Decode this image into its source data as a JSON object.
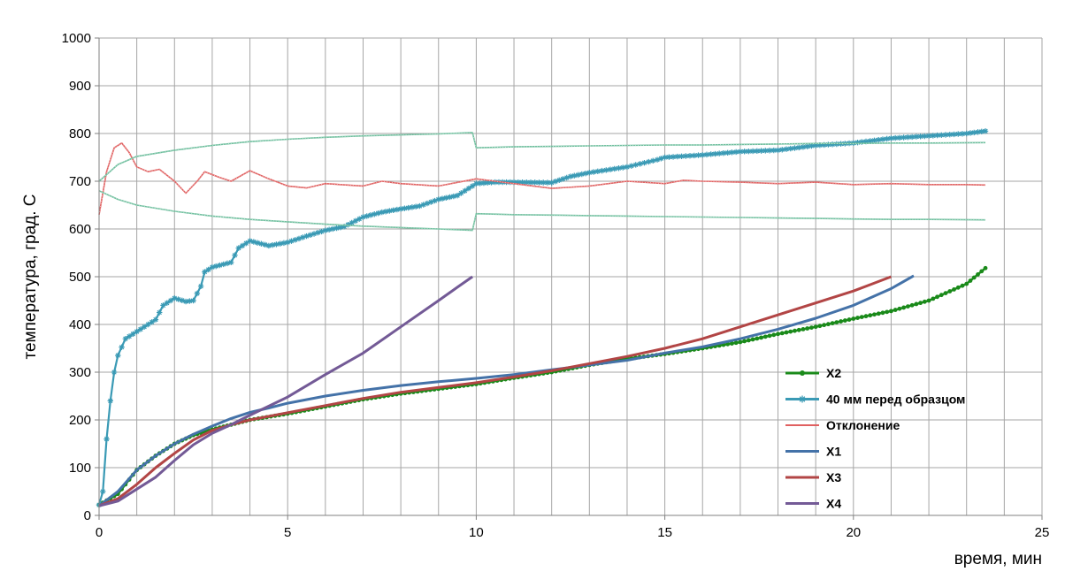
{
  "chart_data": {
    "type": "line",
    "title": "",
    "xlabel": "время, мин",
    "ylabel": "температура, град. С",
    "xlim": [
      0,
      25
    ],
    "ylim": [
      0,
      1000
    ],
    "xticks": [
      0,
      5,
      10,
      15,
      20,
      25
    ],
    "yticks": [
      0,
      100,
      200,
      300,
      400,
      500,
      600,
      700,
      800,
      900,
      1000
    ],
    "x_minor_step": 1,
    "y_major_step": 100,
    "grid": true,
    "legend_position": "bottom-right",
    "series": [
      {
        "name": "X2",
        "color": "#1a8a1a",
        "marker": "dot",
        "points": [
          [
            0,
            22
          ],
          [
            0.5,
            45
          ],
          [
            1,
            95
          ],
          [
            1.5,
            125
          ],
          [
            2,
            150
          ],
          [
            2.5,
            168
          ],
          [
            3,
            180
          ],
          [
            3.5,
            190
          ],
          [
            4,
            200
          ],
          [
            5,
            213
          ],
          [
            6,
            228
          ],
          [
            7,
            243
          ],
          [
            8,
            255
          ],
          [
            9,
            265
          ],
          [
            10,
            275
          ],
          [
            11,
            288
          ],
          [
            12,
            300
          ],
          [
            13,
            315
          ],
          [
            14,
            328
          ],
          [
            15,
            338
          ],
          [
            16,
            350
          ],
          [
            17,
            363
          ],
          [
            18,
            380
          ],
          [
            19,
            395
          ],
          [
            20,
            412
          ],
          [
            21,
            428
          ],
          [
            22,
            450
          ],
          [
            23,
            485
          ],
          [
            23.5,
            518
          ]
        ]
      },
      {
        "name": "40 мм перед образцом",
        "color": "#3a9ab5",
        "marker": "star",
        "points": [
          [
            0,
            22
          ],
          [
            0.1,
            50
          ],
          [
            0.2,
            160
          ],
          [
            0.3,
            240
          ],
          [
            0.4,
            300
          ],
          [
            0.5,
            335
          ],
          [
            0.7,
            370
          ],
          [
            1,
            385
          ],
          [
            1.2,
            395
          ],
          [
            1.5,
            410
          ],
          [
            1.7,
            440
          ],
          [
            2,
            455
          ],
          [
            2.3,
            448
          ],
          [
            2.5,
            450
          ],
          [
            2.7,
            480
          ],
          [
            2.8,
            510
          ],
          [
            3,
            520
          ],
          [
            3.5,
            530
          ],
          [
            3.7,
            560
          ],
          [
            4,
            575
          ],
          [
            4.5,
            565
          ],
          [
            5,
            572
          ],
          [
            5.5,
            585
          ],
          [
            6,
            597
          ],
          [
            6.5,
            605
          ],
          [
            7,
            625
          ],
          [
            7.5,
            635
          ],
          [
            8,
            642
          ],
          [
            8.5,
            648
          ],
          [
            9,
            662
          ],
          [
            9.5,
            670
          ],
          [
            10,
            695
          ],
          [
            10.5,
            698
          ],
          [
            11,
            698
          ],
          [
            12,
            697
          ],
          [
            12.5,
            710
          ],
          [
            13,
            718
          ],
          [
            14,
            730
          ],
          [
            14.8,
            745
          ],
          [
            15,
            750
          ],
          [
            16,
            755
          ],
          [
            17,
            762
          ],
          [
            18,
            765
          ],
          [
            19,
            775
          ],
          [
            20,
            780
          ],
          [
            21,
            790
          ],
          [
            22,
            795
          ],
          [
            23,
            800
          ],
          [
            23.5,
            805
          ]
        ]
      },
      {
        "name": "Отклонение",
        "color": "#e06060",
        "marker": "thin",
        "points": [
          [
            0,
            630
          ],
          [
            0.2,
            720
          ],
          [
            0.4,
            770
          ],
          [
            0.6,
            780
          ],
          [
            0.8,
            760
          ],
          [
            1,
            730
          ],
          [
            1.3,
            720
          ],
          [
            1.6,
            725
          ],
          [
            2,
            700
          ],
          [
            2.3,
            675
          ],
          [
            2.6,
            700
          ],
          [
            2.8,
            720
          ],
          [
            3.2,
            708
          ],
          [
            3.5,
            700
          ],
          [
            4,
            722
          ],
          [
            4.5,
            705
          ],
          [
            5,
            690
          ],
          [
            5.5,
            686
          ],
          [
            6,
            695
          ],
          [
            7,
            690
          ],
          [
            7.5,
            700
          ],
          [
            8,
            695
          ],
          [
            9,
            690
          ],
          [
            10,
            705
          ],
          [
            10.5,
            700
          ],
          [
            11,
            695
          ],
          [
            12,
            685
          ],
          [
            13,
            690
          ],
          [
            14,
            700
          ],
          [
            15,
            695
          ],
          [
            15.5,
            702
          ],
          [
            16,
            700
          ],
          [
            17,
            698
          ],
          [
            18,
            695
          ],
          [
            19,
            698
          ],
          [
            20,
            693
          ],
          [
            21,
            695
          ],
          [
            22,
            693
          ],
          [
            23,
            693
          ],
          [
            23.5,
            692
          ]
        ]
      },
      {
        "name": "",
        "color": "#6fbf9e",
        "marker": "thin",
        "points": [
          [
            0,
            700
          ],
          [
            0.5,
            735
          ],
          [
            1,
            752
          ],
          [
            2,
            765
          ],
          [
            3,
            775
          ],
          [
            4,
            783
          ],
          [
            5,
            788
          ],
          [
            6,
            792
          ],
          [
            7,
            795
          ],
          [
            8,
            797
          ],
          [
            9,
            799
          ],
          [
            9.9,
            802
          ],
          [
            10,
            770
          ],
          [
            11,
            772
          ],
          [
            12,
            773
          ],
          [
            13,
            774
          ],
          [
            14,
            775
          ],
          [
            15,
            776
          ],
          [
            16,
            776
          ],
          [
            17,
            777
          ],
          [
            18,
            778
          ],
          [
            19,
            779
          ],
          [
            20,
            779
          ],
          [
            21,
            780
          ],
          [
            22,
            780
          ],
          [
            23.5,
            781
          ]
        ]
      },
      {
        "name": "",
        "color": "#6fbf9e",
        "marker": "thin",
        "points": [
          [
            0,
            680
          ],
          [
            0.5,
            662
          ],
          [
            1,
            650
          ],
          [
            2,
            637
          ],
          [
            3,
            627
          ],
          [
            4,
            620
          ],
          [
            5,
            615
          ],
          [
            6,
            610
          ],
          [
            7,
            606
          ],
          [
            8,
            603
          ],
          [
            9,
            600
          ],
          [
            9.9,
            597
          ],
          [
            10,
            632
          ],
          [
            11,
            630
          ],
          [
            12,
            629
          ],
          [
            13,
            628
          ],
          [
            14,
            627
          ],
          [
            15,
            626
          ],
          [
            16,
            625
          ],
          [
            17,
            624
          ],
          [
            18,
            623
          ],
          [
            19,
            622
          ],
          [
            20,
            621
          ],
          [
            21,
            620
          ],
          [
            22,
            620
          ],
          [
            23.5,
            619
          ]
        ]
      },
      {
        "name": "X1",
        "color": "#4472a8",
        "marker": "none",
        "points": [
          [
            0,
            20
          ],
          [
            0.5,
            50
          ],
          [
            1,
            95
          ],
          [
            1.5,
            125
          ],
          [
            2,
            150
          ],
          [
            2.5,
            170
          ],
          [
            3,
            187
          ],
          [
            3.5,
            203
          ],
          [
            4,
            216
          ],
          [
            4.5,
            225
          ],
          [
            5,
            235
          ],
          [
            6,
            250
          ],
          [
            7,
            262
          ],
          [
            8,
            272
          ],
          [
            9,
            280
          ],
          [
            10,
            287
          ],
          [
            11,
            295
          ],
          [
            12,
            305
          ],
          [
            13,
            315
          ],
          [
            14,
            325
          ],
          [
            15,
            340
          ],
          [
            16,
            353
          ],
          [
            17,
            370
          ],
          [
            18,
            390
          ],
          [
            19,
            413
          ],
          [
            20,
            440
          ],
          [
            21,
            475
          ],
          [
            21.6,
            502
          ]
        ]
      },
      {
        "name": "X3",
        "color": "#b24545",
        "marker": "none",
        "points": [
          [
            0,
            20
          ],
          [
            0.5,
            35
          ],
          [
            1,
            65
          ],
          [
            1.5,
            100
          ],
          [
            2,
            130
          ],
          [
            2.5,
            158
          ],
          [
            3,
            178
          ],
          [
            3.5,
            190
          ],
          [
            4,
            200
          ],
          [
            5,
            215
          ],
          [
            6,
            230
          ],
          [
            7,
            245
          ],
          [
            8,
            258
          ],
          [
            9,
            268
          ],
          [
            10,
            278
          ],
          [
            11,
            290
          ],
          [
            12,
            303
          ],
          [
            13,
            318
          ],
          [
            14,
            333
          ],
          [
            15,
            350
          ],
          [
            16,
            370
          ],
          [
            17,
            395
          ],
          [
            18,
            420
          ],
          [
            19,
            445
          ],
          [
            20,
            470
          ],
          [
            20.5,
            485
          ],
          [
            21,
            500
          ]
        ]
      },
      {
        "name": "X4",
        "color": "#735a96",
        "marker": "none",
        "points": [
          [
            0,
            20
          ],
          [
            0.5,
            30
          ],
          [
            1,
            55
          ],
          [
            1.5,
            80
          ],
          [
            2,
            115
          ],
          [
            2.5,
            148
          ],
          [
            3,
            172
          ],
          [
            3.5,
            190
          ],
          [
            4,
            210
          ],
          [
            5,
            248
          ],
          [
            6,
            295
          ],
          [
            7,
            340
          ],
          [
            8,
            395
          ],
          [
            9,
            450
          ],
          [
            9.5,
            478
          ],
          [
            9.9,
            500
          ]
        ]
      }
    ]
  },
  "legend": {
    "items": [
      {
        "label": "X2",
        "color": "#1a8a1a",
        "marker": "dot"
      },
      {
        "label": "40 мм перед образцом",
        "color": "#3a9ab5",
        "marker": "star"
      },
      {
        "label": "Отклонение",
        "color": "#e06060",
        "marker": "thin"
      },
      {
        "label": "X1",
        "color": "#4472a8",
        "marker": "none"
      },
      {
        "label": "X3",
        "color": "#b24545",
        "marker": "none"
      },
      {
        "label": "X4",
        "color": "#735a96",
        "marker": "none"
      }
    ]
  }
}
